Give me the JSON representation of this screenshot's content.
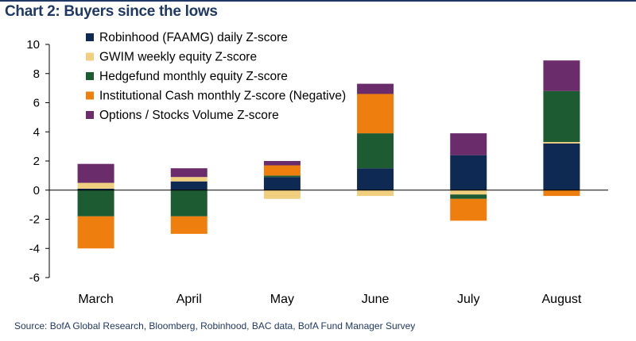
{
  "chart_data": {
    "type": "bar",
    "stacked": true,
    "title": "Chart 2: Buyers since the lows",
    "source": "Source: BofA Global Research, Bloomberg, Robinhood, BAC data, BofA Fund Manager Survey",
    "categories": [
      "March",
      "April",
      "May",
      "June",
      "July",
      "August"
    ],
    "ylim": [
      -6,
      10
    ],
    "yticks": [
      -6,
      -4,
      -2,
      0,
      2,
      4,
      6,
      8,
      10
    ],
    "legend_position": "top-left",
    "grid": false,
    "series": [
      {
        "name": "Robinhood (FAAMG) daily Z-score",
        "color": "#0f2a52",
        "values": [
          0.1,
          0.6,
          0.9,
          1.5,
          2.4,
          3.2
        ]
      },
      {
        "name": "GWIM weekly equity Z-score",
        "color": "#f0cf7e",
        "values": [
          0.4,
          0.3,
          -0.6,
          -0.4,
          -0.3,
          0.1
        ]
      },
      {
        "name": "Hedgefund monthly equity Z-score",
        "color": "#1d5b32",
        "values": [
          -1.8,
          -1.8,
          0.1,
          2.4,
          -0.3,
          3.5
        ]
      },
      {
        "name": "Institutional Cash monthly Z-score (Negative)",
        "color": "#ee7f0f",
        "values": [
          -2.2,
          -1.2,
          0.7,
          2.7,
          -1.5,
          -0.4
        ]
      },
      {
        "name": "Options / Stocks Volume Z-score",
        "color": "#6a2c6a",
        "values": [
          1.3,
          0.6,
          0.3,
          0.7,
          1.5,
          2.1
        ]
      }
    ]
  }
}
